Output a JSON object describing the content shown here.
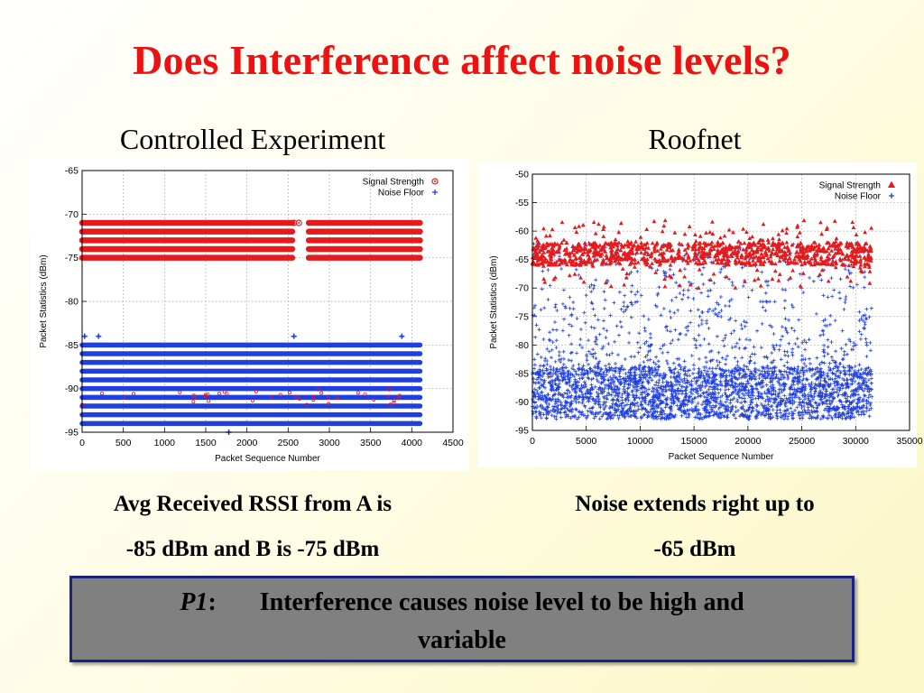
{
  "slide": {
    "title": "Does Interference affect noise levels?",
    "left_heading": "Controlled Experiment",
    "right_heading": "Roofnet",
    "left_caption_line1": "Avg Received RSSI from  A is",
    "left_caption_line2": "-85 dBm and B is -75 dBm",
    "right_caption_line1": "Noise extends right up to",
    "right_caption_line2": "-65 dBm",
    "callout_label": "P1",
    "callout_colon": ":",
    "callout_text_line1": "Interference causes noise level to be high and",
    "callout_text_line2": "variable"
  },
  "chart_data": [
    {
      "type": "scatter",
      "xlabel": "Packet Sequence Number",
      "ylabel": "Packet Statistics (dBm)",
      "xlim": [
        0,
        4500
      ],
      "ylim": [
        -95,
        -65
      ],
      "x_ticks": [
        0,
        500,
        1000,
        1500,
        2000,
        2500,
        3000,
        3500,
        4000,
        4500
      ],
      "y_ticks": [
        -65,
        -70,
        -75,
        -80,
        -85,
        -90,
        -95
      ],
      "grid": true,
      "legend_position": "top-right",
      "series": [
        {
          "name": "Signal Strength",
          "marker": "circle",
          "color": "#e41a1c",
          "band_levels": [
            -71,
            -72,
            -73,
            -74,
            -75
          ],
          "x_range": [
            0,
            4100
          ],
          "gap_x": [
            2550,
            2750
          ],
          "outliers": [
            {
              "x": 2570,
              "y": -71
            },
            {
              "x": 2630,
              "y": -71
            }
          ]
        },
        {
          "name": "Noise Floor",
          "marker": "plus",
          "color": "#1f3fe0",
          "band_levels": [
            -85,
            -86,
            -87,
            -88,
            -89,
            -90,
            -91,
            -92,
            -93,
            -94
          ],
          "x_range": [
            0,
            4100
          ],
          "outliers": [
            {
              "x": 30,
              "y": -84
            },
            {
              "x": 200,
              "y": -84
            },
            {
              "x": 2570,
              "y": -84
            },
            {
              "x": 3880,
              "y": -84
            },
            {
              "x": 1780,
              "y": -95
            }
          ]
        }
      ]
    },
    {
      "type": "scatter",
      "xlabel": "Packet Sequence Number",
      "ylabel": "Packet Statistics (dBm)",
      "xlim": [
        0,
        35000
      ],
      "ylim": [
        -95,
        -50
      ],
      "x_ticks": [
        0,
        5000,
        10000,
        15000,
        20000,
        25000,
        30000,
        35000
      ],
      "y_ticks": [
        -50,
        -55,
        -60,
        -65,
        -70,
        -75,
        -80,
        -85,
        -90,
        -95
      ],
      "grid": true,
      "legend_position": "top-right",
      "series": [
        {
          "name": "Signal Strength",
          "marker": "triangle",
          "color": "#e41a1c",
          "x_range": [
            0,
            31500
          ],
          "dense_range": [
            -66,
            -62
          ],
          "spread_range": [
            -70,
            -58
          ]
        },
        {
          "name": "Noise Floor",
          "marker": "plus",
          "color": "#1f3fe0",
          "x_range": [
            0,
            31500
          ],
          "dense_range": [
            -93,
            -84
          ],
          "spread_range": [
            -84,
            -62
          ]
        }
      ]
    }
  ]
}
